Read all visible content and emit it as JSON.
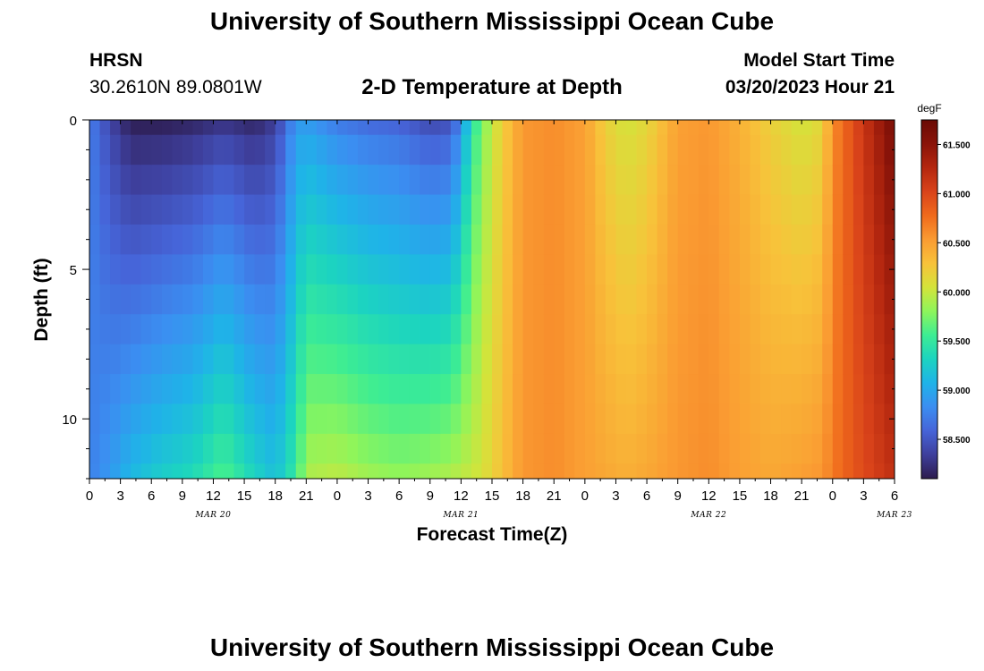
{
  "header": {
    "title": "University of Southern Mississippi Ocean Cube",
    "station": "HRSN",
    "coordinates": "30.2610N  89.0801W",
    "subtitle": "2-D Temperature at Depth",
    "model_start_label": "Model Start Time",
    "model_start_value": "03/20/2023 Hour 21"
  },
  "footer": {
    "title": "University of Southern Mississippi Ocean Cube"
  },
  "chart_data": {
    "type": "heatmap",
    "title": "2-D Temperature at Depth",
    "xlabel": "Forecast Time(Z)",
    "ylabel": "Depth (ft)",
    "x_ticks": [
      "0",
      "3",
      "6",
      "9",
      "12",
      "15",
      "18",
      "21",
      "0",
      "3",
      "6",
      "9",
      "12",
      "15",
      "18",
      "21",
      "0",
      "3",
      "6",
      "9",
      "12",
      "15",
      "18",
      "21",
      "0",
      "3",
      "6"
    ],
    "date_labels": [
      {
        "label": "MAR 20",
        "hour": 12
      },
      {
        "label": "MAR 21",
        "hour": 36
      },
      {
        "label": "MAR 22",
        "hour": 60
      },
      {
        "label": "MAR 23",
        "hour": 78
      }
    ],
    "x_range_hours": [
      0,
      78
    ],
    "y_ticks": [
      "0",
      "5",
      "10"
    ],
    "y_range_ft": [
      0,
      12
    ],
    "colorbar": {
      "unit": "degF",
      "ticks": [
        "58.500",
        "59.000",
        "59.500",
        "60.000",
        "60.500",
        "61.000",
        "61.500"
      ],
      "range": [
        58.1,
        61.75
      ],
      "colors": [
        "#2d1c4e",
        "#3e3f9c",
        "#4664d8",
        "#3b8ef1",
        "#1fb3e8",
        "#1cd4c0",
        "#3ded93",
        "#8ef55b",
        "#d4e33a",
        "#f8c23a",
        "#fa9b32",
        "#f06a1c",
        "#d9431a",
        "#b4270f",
        "#8a1409",
        "#6a0a04"
      ]
    },
    "depth_levels_ft": [
      0,
      1,
      2,
      3,
      4,
      5,
      6,
      7,
      8,
      9,
      10,
      11,
      12
    ],
    "columns": [
      {
        "hour": 0,
        "surface": 58.75,
        "bottom": 58.75
      },
      {
        "hour": 2,
        "surface": 58.4,
        "bottom": 58.9
      },
      {
        "hour": 4,
        "surface": 58.15,
        "bottom": 59.1
      },
      {
        "hour": 7,
        "surface": 58.15,
        "bottom": 59.25
      },
      {
        "hour": 10,
        "surface": 58.2,
        "bottom": 59.35
      },
      {
        "hour": 13,
        "surface": 58.3,
        "bottom": 59.6
      },
      {
        "hour": 16,
        "surface": 58.2,
        "bottom": 59.3
      },
      {
        "hour": 18,
        "surface": 58.35,
        "bottom": 59.15
      },
      {
        "hour": 20,
        "surface": 58.9,
        "bottom": 59.5
      },
      {
        "hour": 21,
        "surface": 58.95,
        "bottom": 59.9
      },
      {
        "hour": 24,
        "surface": 58.75,
        "bottom": 59.95
      },
      {
        "hour": 27,
        "surface": 58.65,
        "bottom": 59.85
      },
      {
        "hour": 30,
        "surface": 58.6,
        "bottom": 59.8
      },
      {
        "hour": 33,
        "surface": 58.45,
        "bottom": 59.85
      },
      {
        "hour": 35,
        "surface": 58.5,
        "bottom": 59.9
      },
      {
        "hour": 36,
        "surface": 58.85,
        "bottom": 59.95
      },
      {
        "hour": 37,
        "surface": 59.4,
        "bottom": 60.0
      },
      {
        "hour": 38,
        "surface": 59.75,
        "bottom": 60.05
      },
      {
        "hour": 40,
        "surface": 60.2,
        "bottom": 60.3
      },
      {
        "hour": 42,
        "surface": 60.55,
        "bottom": 60.55
      },
      {
        "hour": 45,
        "surface": 60.6,
        "bottom": 60.6
      },
      {
        "hour": 48,
        "surface": 60.5,
        "bottom": 60.5
      },
      {
        "hour": 50,
        "surface": 60.2,
        "bottom": 60.45
      },
      {
        "hour": 52,
        "surface": 60.05,
        "bottom": 60.4
      },
      {
        "hour": 54,
        "surface": 60.15,
        "bottom": 60.45
      },
      {
        "hour": 57,
        "surface": 60.5,
        "bottom": 60.55
      },
      {
        "hour": 60,
        "surface": 60.55,
        "bottom": 60.6
      },
      {
        "hour": 63,
        "surface": 60.4,
        "bottom": 60.5
      },
      {
        "hour": 66,
        "surface": 60.2,
        "bottom": 60.45
      },
      {
        "hour": 69,
        "surface": 60.05,
        "bottom": 60.5
      },
      {
        "hour": 71,
        "surface": 60.15,
        "bottom": 60.55
      },
      {
        "hour": 72,
        "surface": 60.6,
        "bottom": 60.7
      },
      {
        "hour": 74,
        "surface": 60.95,
        "bottom": 60.9
      },
      {
        "hour": 76,
        "surface": 61.3,
        "bottom": 61.05
      },
      {
        "hour": 78,
        "surface": 61.65,
        "bottom": 61.2
      }
    ]
  }
}
